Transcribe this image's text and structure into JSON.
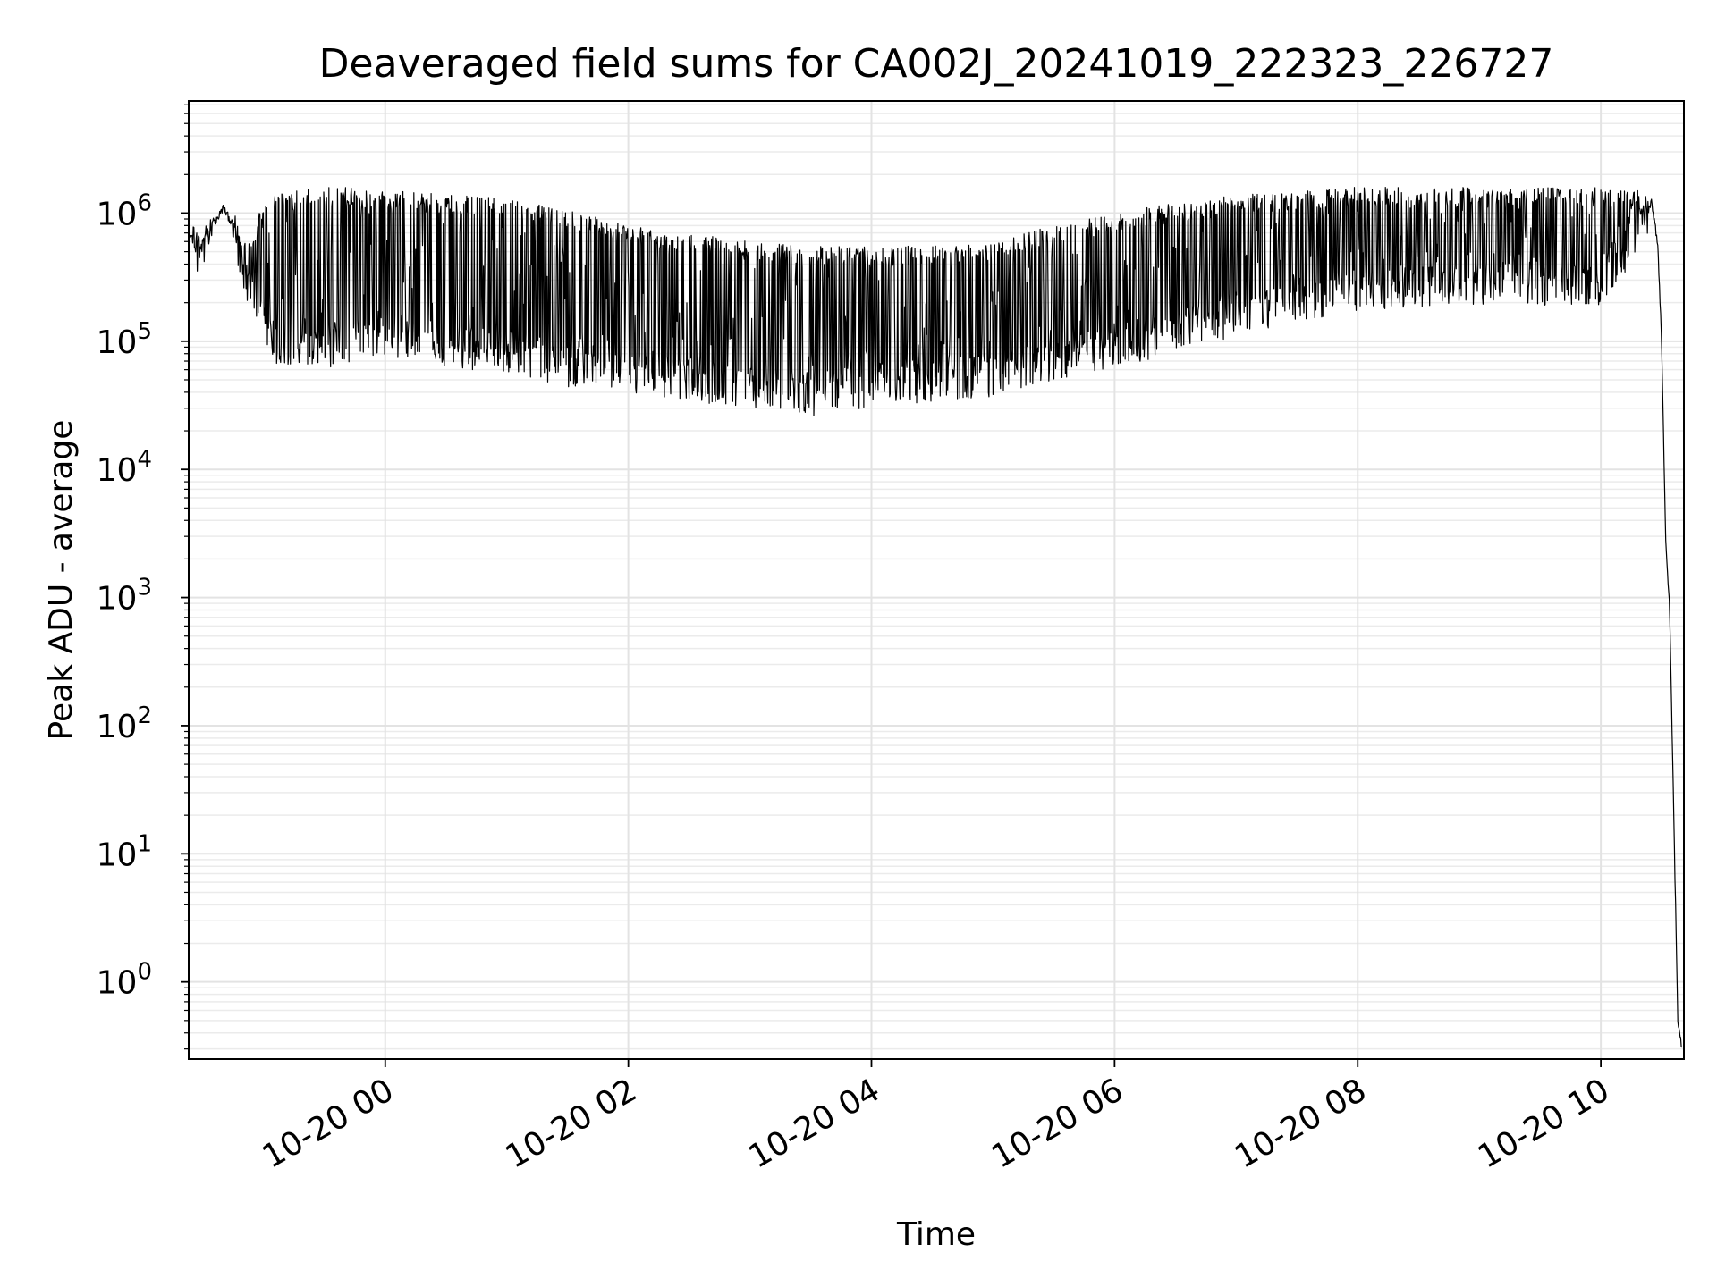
{
  "chart_data": {
    "type": "line",
    "title": "Deaveraged field sums for CA002J_20241019_222323_226727",
    "xlabel": "Time",
    "ylabel": "Peak ADU - average",
    "yscale": "log",
    "grid": true,
    "legend": "none",
    "line_color": "#000000",
    "xlim": [
      "2024-10-19 22:23",
      "2024-10-20 10:41"
    ],
    "ylim": [
      0.25,
      7500000
    ],
    "x_ticks": [
      {
        "value": "2024-10-20 00:00",
        "label": "10-20 00"
      },
      {
        "value": "2024-10-20 02:00",
        "label": "10-20 02"
      },
      {
        "value": "2024-10-20 04:00",
        "label": "10-20 04"
      },
      {
        "value": "2024-10-20 06:00",
        "label": "10-20 06"
      },
      {
        "value": "2024-10-20 08:00",
        "label": "10-20 08"
      },
      {
        "value": "2024-10-20 10:00",
        "label": "10-20 10"
      }
    ],
    "y_ticks": [
      {
        "value": 1,
        "base": "10",
        "exp": "0"
      },
      {
        "value": 10,
        "base": "10",
        "exp": "1"
      },
      {
        "value": 100,
        "base": "10",
        "exp": "2"
      },
      {
        "value": 1000,
        "base": "10",
        "exp": "3"
      },
      {
        "value": 10000,
        "base": "10",
        "exp": "4"
      },
      {
        "value": 100000,
        "base": "10",
        "exp": "5"
      },
      {
        "value": 1000000,
        "base": "10",
        "exp": "6"
      }
    ],
    "series": [
      {
        "x": [
          "2024-10-19 22:23",
          "2024-10-19 22:30",
          "2024-10-19 22:40",
          "2024-10-19 22:45",
          "2024-10-19 22:50",
          "2024-10-19 22:55",
          "2024-10-19 23:00",
          "2024-10-19 23:10",
          "2024-10-19 23:20",
          "2024-10-19 23:30",
          "2024-10-19 23:40",
          "2024-10-20 00:00",
          "2024-10-20 00:30",
          "2024-10-20 01:00",
          "2024-10-20 01:30",
          "2024-10-20 02:00",
          "2024-10-20 02:30",
          "2024-10-20 03:00",
          "2024-10-20 03:30",
          "2024-10-20 04:00",
          "2024-10-20 04:30",
          "2024-10-20 05:00",
          "2024-10-20 05:30",
          "2024-10-20 06:00",
          "2024-10-20 06:30",
          "2024-10-20 07:00",
          "2024-10-20 07:30",
          "2024-10-20 08:00",
          "2024-10-20 08:30",
          "2024-10-20 09:00",
          "2024-10-20 09:30",
          "2024-10-20 10:00",
          "2024-10-20 10:10",
          "2024-10-20 10:20",
          "2024-10-20 10:25",
          "2024-10-20 10:28",
          "2024-10-20 10:30",
          "2024-10-20 10:32",
          "2024-10-20 10:34",
          "2024-10-20 10:36",
          "2024-10-20 10:38",
          "2024-10-20 10:40"
        ],
        "base": [
          600000,
          550000,
          1100000,
          800000,
          400000,
          250000,
          150000,
          75000,
          85000,
          95000,
          110000,
          120000,
          100000,
          90000,
          70000,
          65000,
          55000,
          45000,
          42000,
          50000,
          55000,
          60000,
          75000,
          100000,
          130000,
          180000,
          230000,
          280000,
          300000,
          300000,
          300000,
          300000,
          500000,
          900000,
          1200000,
          600000,
          100000,
          3000,
          800,
          20,
          0.5,
          0.3
        ],
        "top": [
          700000,
          650000,
          1200000,
          900000,
          600000,
          600000,
          1500000,
          1500000,
          1500000,
          1600000,
          1600000,
          1500000,
          1400000,
          1300000,
          1100000,
          800000,
          700000,
          600000,
          550000,
          550000,
          560000,
          600000,
          800000,
          1000000,
          1200000,
          1400000,
          1500000,
          1600000,
          1600000,
          1600000,
          1600000,
          1600000,
          1500000,
          1500000,
          1200000,
          600000,
          100000,
          3000,
          800,
          20,
          0.5,
          0.3
        ]
      }
    ]
  }
}
